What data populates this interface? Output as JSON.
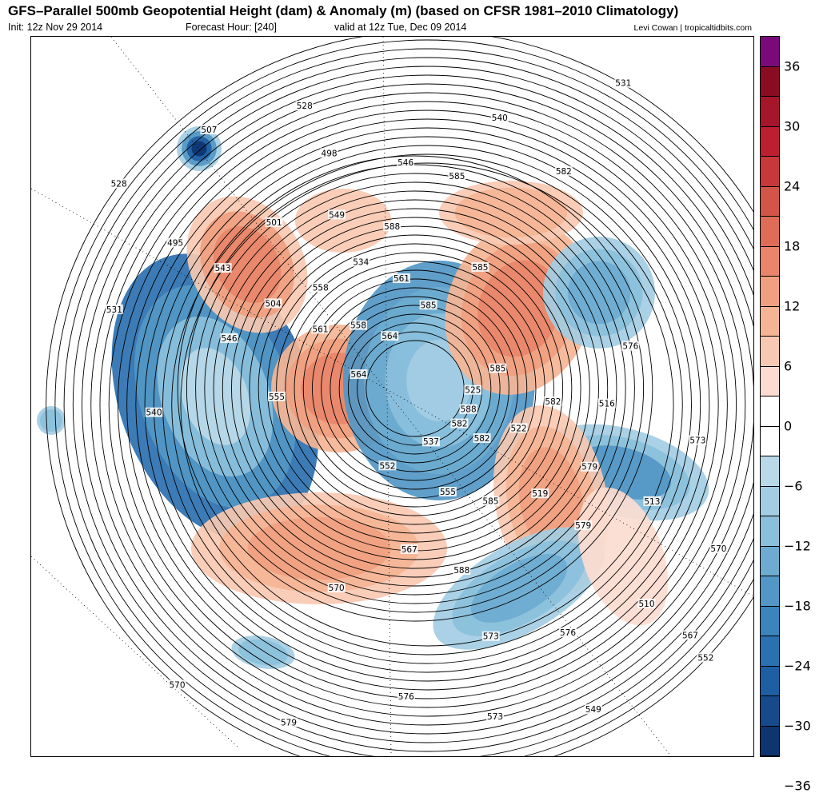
{
  "header": {
    "title": "GFS–Parallel 500mb Geopotential Height (dam) & Anomaly (m) (based on CFSR 1981–2010 Climatology)",
    "init": "Init: 12z Nov 29 2014",
    "forecast_hour": "Forecast Hour: [240]",
    "valid": "valid at 12z Tue, Dec 09 2014",
    "credit": "Levi Cowan | tropicaltidbits.com"
  },
  "colorbar": {
    "colors": [
      "#7a0a7a",
      "#8a0c22",
      "#a5162a",
      "#bb1f30",
      "#c6383a",
      "#d25548",
      "#de6c57",
      "#e8856a",
      "#f0a080",
      "#f5b595",
      "#f8c9b2",
      "#fcdcd0",
      "#ffffff",
      "#ffffff",
      "#bad9e8",
      "#a3cde3",
      "#8bc0dc",
      "#6eabd0",
      "#5297c6",
      "#3b84bc",
      "#2b70b0",
      "#1e5ea3",
      "#164a8a",
      "#0e3570",
      "#0a2258"
    ],
    "labels": [
      "36",
      "30",
      "24",
      "18",
      "12",
      "6",
      "0",
      "−6",
      "−12",
      "−18",
      "−24",
      "−30",
      "−36"
    ]
  },
  "map": {
    "contour_labels": [
      "588",
      "585",
      "582",
      "579",
      "576",
      "573",
      "570",
      "567",
      "564",
      "561",
      "555",
      "546",
      "543",
      "540",
      "531",
      "528",
      "525",
      "522",
      "519",
      "516",
      "513",
      "510",
      "549",
      "552",
      "558",
      "534",
      "504",
      "501",
      "498",
      "495",
      "507",
      "537",
      "582",
      "585",
      "588",
      "579",
      "576",
      "573",
      "570",
      "564",
      "561",
      "558",
      "549",
      "546",
      "540",
      "528",
      "531",
      "552",
      "555",
      "567",
      "570",
      "573",
      "576",
      "579",
      "582",
      "585",
      "585",
      "588",
      "585",
      "582"
    ],
    "anomaly_units": "m",
    "height_units": "dam"
  }
}
